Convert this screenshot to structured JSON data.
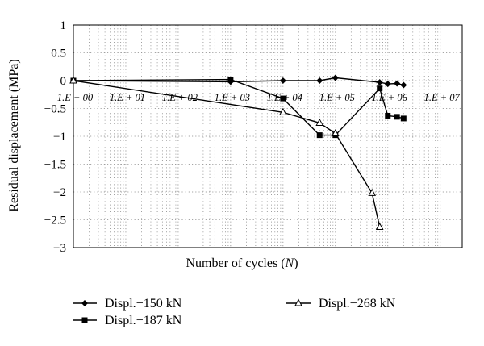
{
  "chart_data": {
    "type": "line",
    "title": "",
    "xlabel": "Number of cycles",
    "xlabel_var": "N",
    "ylabel": "Residual displacement (MPa)",
    "x_scale": "log",
    "xlim": [
      1,
      10000000
    ],
    "ylim": [
      -3,
      1
    ],
    "y_ticks": [
      1,
      0.5,
      0,
      -0.5,
      -1,
      -1.5,
      -2,
      -2.5,
      -3
    ],
    "y_tick_labels": [
      "1",
      "0.5",
      "0",
      "−0.5",
      "−1",
      "−1.5",
      "−2",
      "−2.5",
      "−3"
    ],
    "x_tick_values": [
      1,
      10,
      100,
      1000,
      10000,
      100000,
      1000000,
      10000000
    ],
    "x_tick_labels": [
      "1.E + 00",
      "1.E + 01",
      "1.E + 02",
      "1.E + 03",
      "1.E + 04",
      "1.E + 05",
      "1.E + 06",
      "1.E + 07"
    ],
    "grid": true,
    "legend": "bottom",
    "series": [
      {
        "name": "Displ.−150 kN",
        "marker": "diamond",
        "x": [
          1,
          1000,
          10000,
          50000,
          100000,
          700000,
          1000000,
          1500000,
          2000000
        ],
        "y": [
          0,
          -0.02,
          0,
          0,
          0.05,
          -0.03,
          -0.06,
          -0.05,
          -0.08
        ]
      },
      {
        "name": "Displ.−187 kN",
        "marker": "square",
        "x": [
          1,
          1000,
          10000,
          50000,
          100000,
          700000,
          1000000,
          1500000,
          2000000
        ],
        "y": [
          0,
          0.02,
          -0.32,
          -0.98,
          -0.98,
          -0.14,
          -0.63,
          -0.65,
          -0.68
        ]
      },
      {
        "name": "Displ.−268 kN",
        "marker": "triangle",
        "x": [
          1,
          10000,
          50000,
          100000,
          500000,
          700000
        ],
        "y": [
          0,
          -0.57,
          -0.76,
          -0.95,
          -2.02,
          -2.63
        ]
      }
    ]
  }
}
